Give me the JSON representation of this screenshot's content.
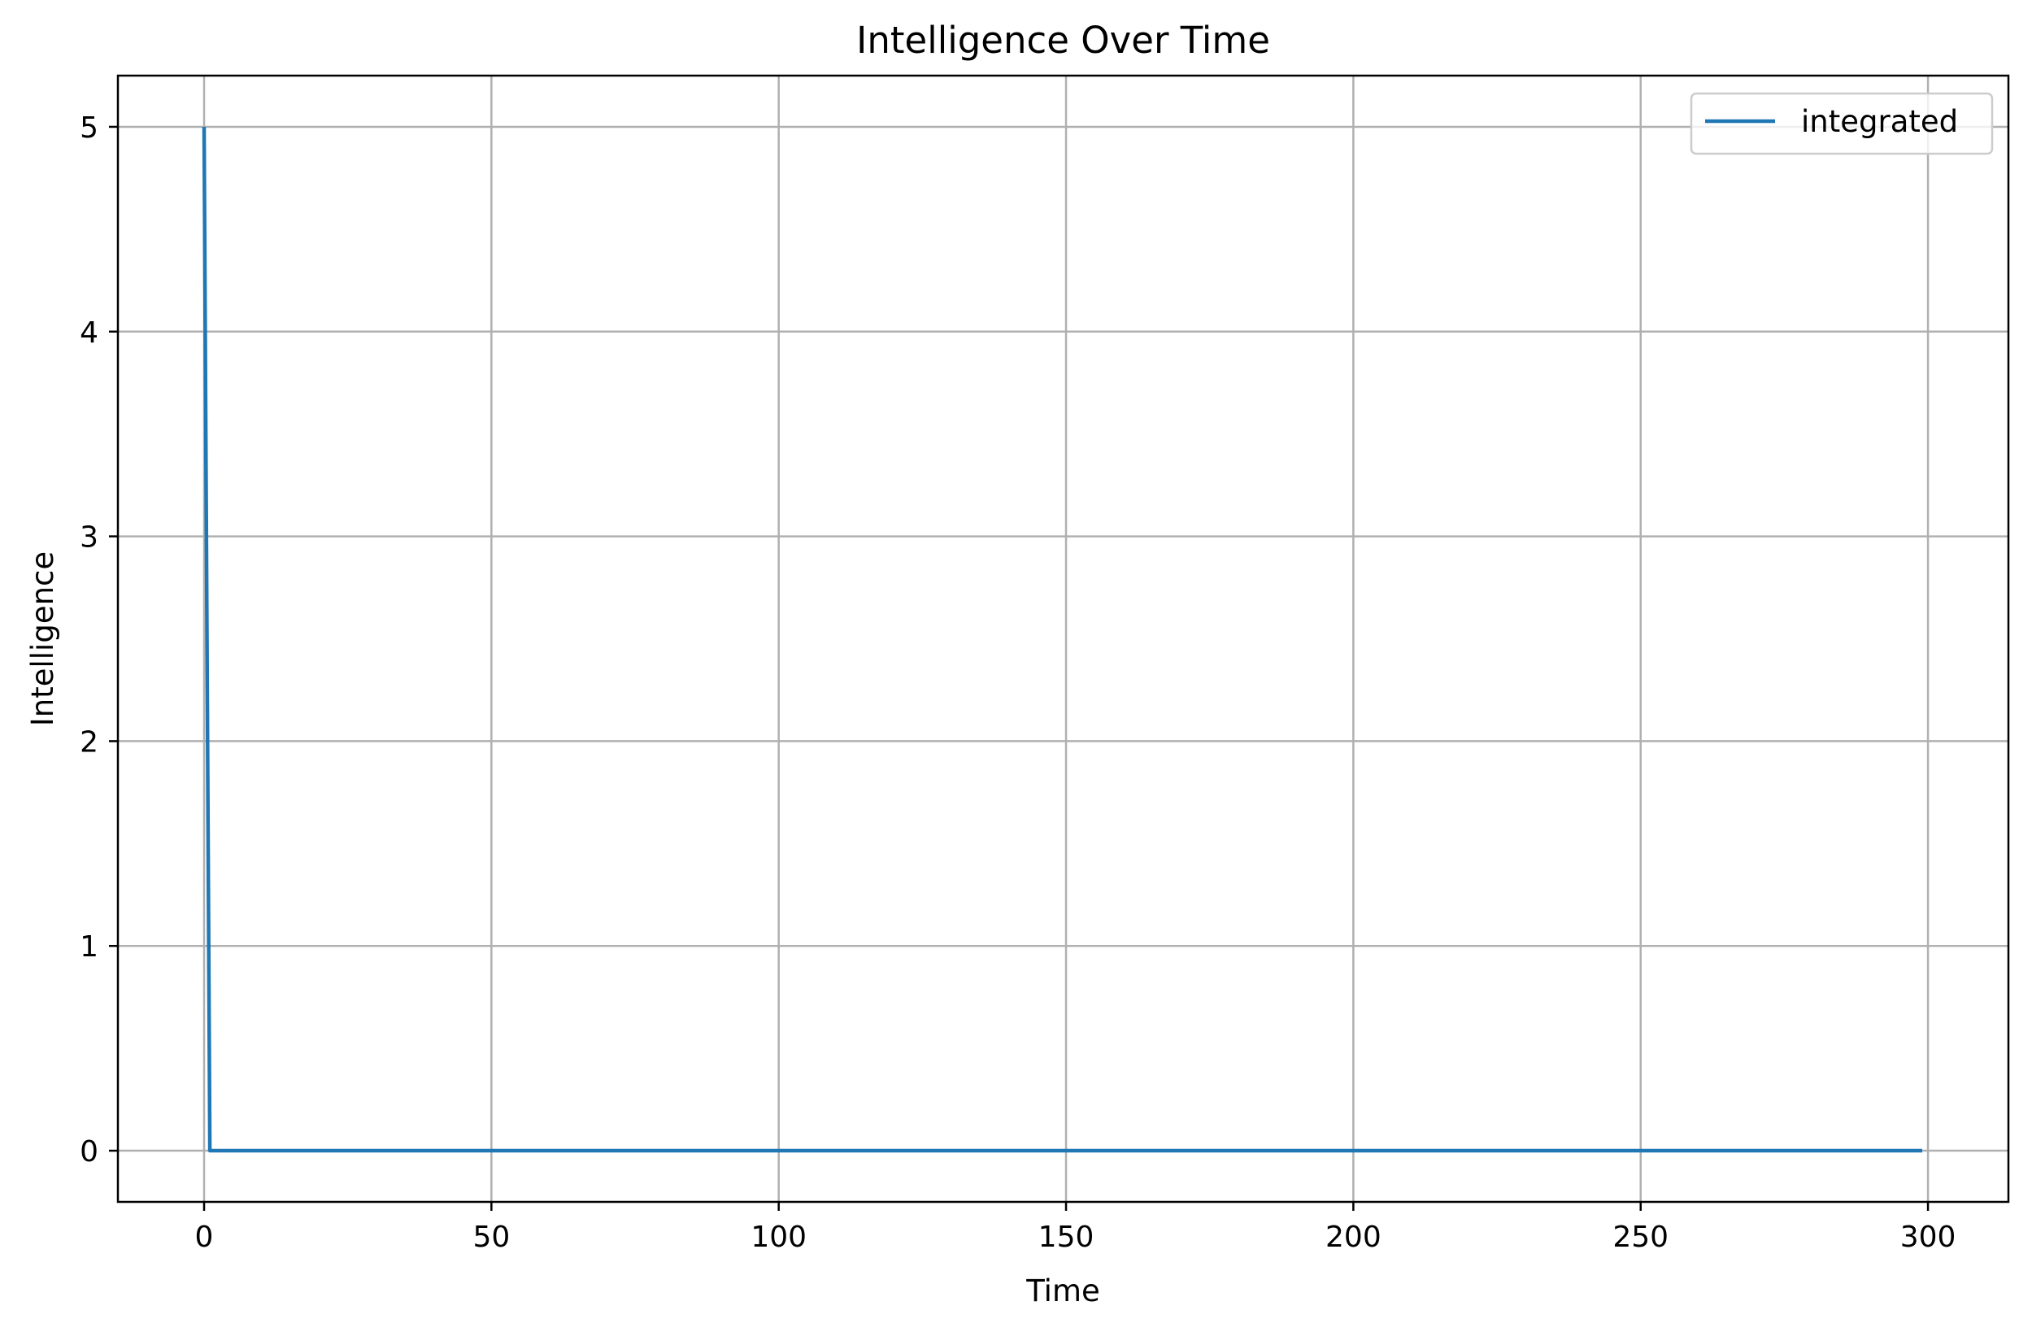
{
  "chart_data": {
    "type": "line",
    "title": "Intelligence Over Time",
    "xlabel": "Time",
    "ylabel": "Intelligence",
    "xlim": [
      -15,
      314
    ],
    "ylim": [
      -0.25,
      5.25
    ],
    "xticks": [
      0,
      50,
      100,
      150,
      200,
      250,
      300
    ],
    "yticks": [
      0,
      1,
      2,
      3,
      4,
      5
    ],
    "grid": true,
    "legend": "top-right",
    "series": [
      {
        "name": "integrated",
        "color": "#1f77b4",
        "x": [
          0,
          1,
          299
        ],
        "y": [
          5,
          0,
          0
        ]
      }
    ]
  }
}
